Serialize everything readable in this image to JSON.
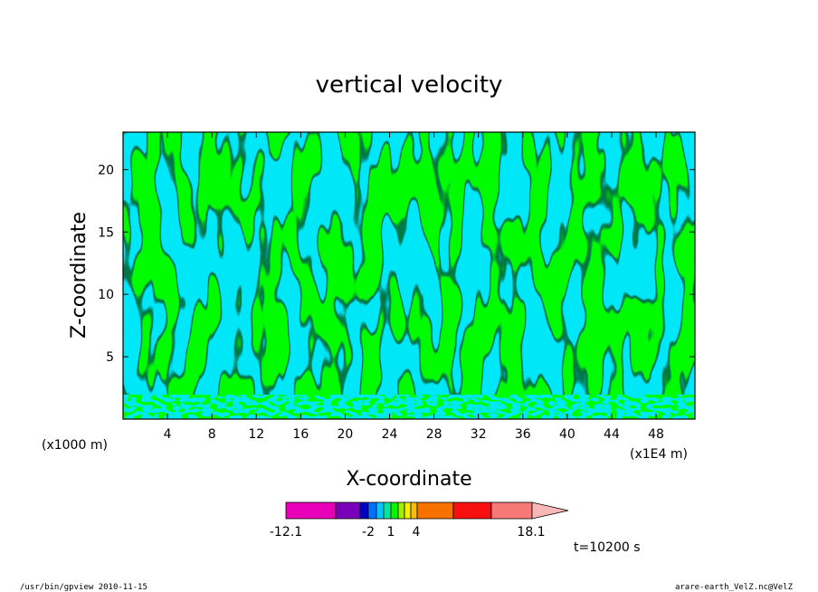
{
  "chart_data": {
    "type": "heatmap",
    "title": "vertical velocity",
    "xlabel": "X-coordinate",
    "ylabel": "Z-coordinate",
    "x_unit_left": "(x1000 m)",
    "x_unit_right": "(x1E4 m)",
    "xlim": [
      0,
      51.5
    ],
    "ylim": [
      0,
      23
    ],
    "x_ticks": [
      4,
      8,
      12,
      16,
      20,
      24,
      28,
      32,
      36,
      40,
      44,
      48
    ],
    "y_ticks": [
      5,
      10,
      15,
      20
    ],
    "field_colors": {
      "negative": "#00e8f8",
      "positive": "#00f800",
      "contour": "#000000"
    },
    "colorbar": {
      "min": -12.1,
      "max": 18.1,
      "tick_labels": [
        "-12.1",
        "-2",
        "1",
        "4",
        "18.1"
      ],
      "colors": [
        "#e800b8",
        "#7800b8",
        "#0000c8",
        "#0070ff",
        "#00c8ff",
        "#00e8a0",
        "#00f800",
        "#a0f000",
        "#f8f000",
        "#f8c000",
        "#f87000",
        "#f81010",
        "#f87878",
        "#f8b8b8"
      ]
    },
    "time_label": "t=10200 s"
  },
  "footer": {
    "left": "/usr/bin/gpview  2010-11-15",
    "right": "arare-earth_VelZ.nc@VelZ"
  }
}
